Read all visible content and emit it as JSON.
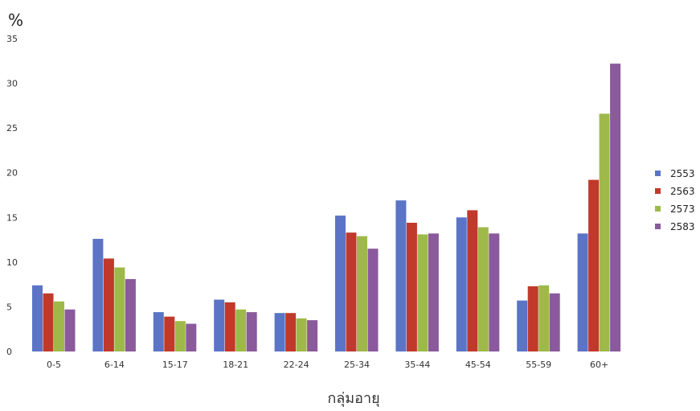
{
  "chart_data": {
    "type": "bar",
    "title": "",
    "xlabel": "กลุ่มอายุ",
    "ylabel": "%",
    "ylim": [
      0,
      35
    ],
    "yticks": [
      0,
      5,
      10,
      15,
      20,
      25,
      30,
      35
    ],
    "grid": false,
    "legend_position": "right",
    "categories": [
      "0-5",
      "6-14",
      "15-17",
      "18-21",
      "22-24",
      "25-34",
      "35-44",
      "45-54",
      "55-59",
      "60+"
    ],
    "series": [
      {
        "name": "2553",
        "color": "#5b74c5",
        "values": [
          7.4,
          12.6,
          4.4,
          5.8,
          4.3,
          15.2,
          16.9,
          15.0,
          5.7,
          13.2
        ]
      },
      {
        "name": "2563",
        "color": "#c0392b",
        "values": [
          6.5,
          10.4,
          3.9,
          5.5,
          4.3,
          13.3,
          14.4,
          15.8,
          7.3,
          19.2
        ]
      },
      {
        "name": "2573",
        "color": "#9eb949",
        "values": [
          5.6,
          9.4,
          3.4,
          4.7,
          3.7,
          12.9,
          13.1,
          13.9,
          7.4,
          26.6
        ]
      },
      {
        "name": "2583",
        "color": "#8a5a9c",
        "values": [
          4.7,
          8.1,
          3.1,
          4.4,
          3.5,
          11.5,
          13.2,
          13.2,
          6.5,
          32.2
        ]
      }
    ]
  }
}
